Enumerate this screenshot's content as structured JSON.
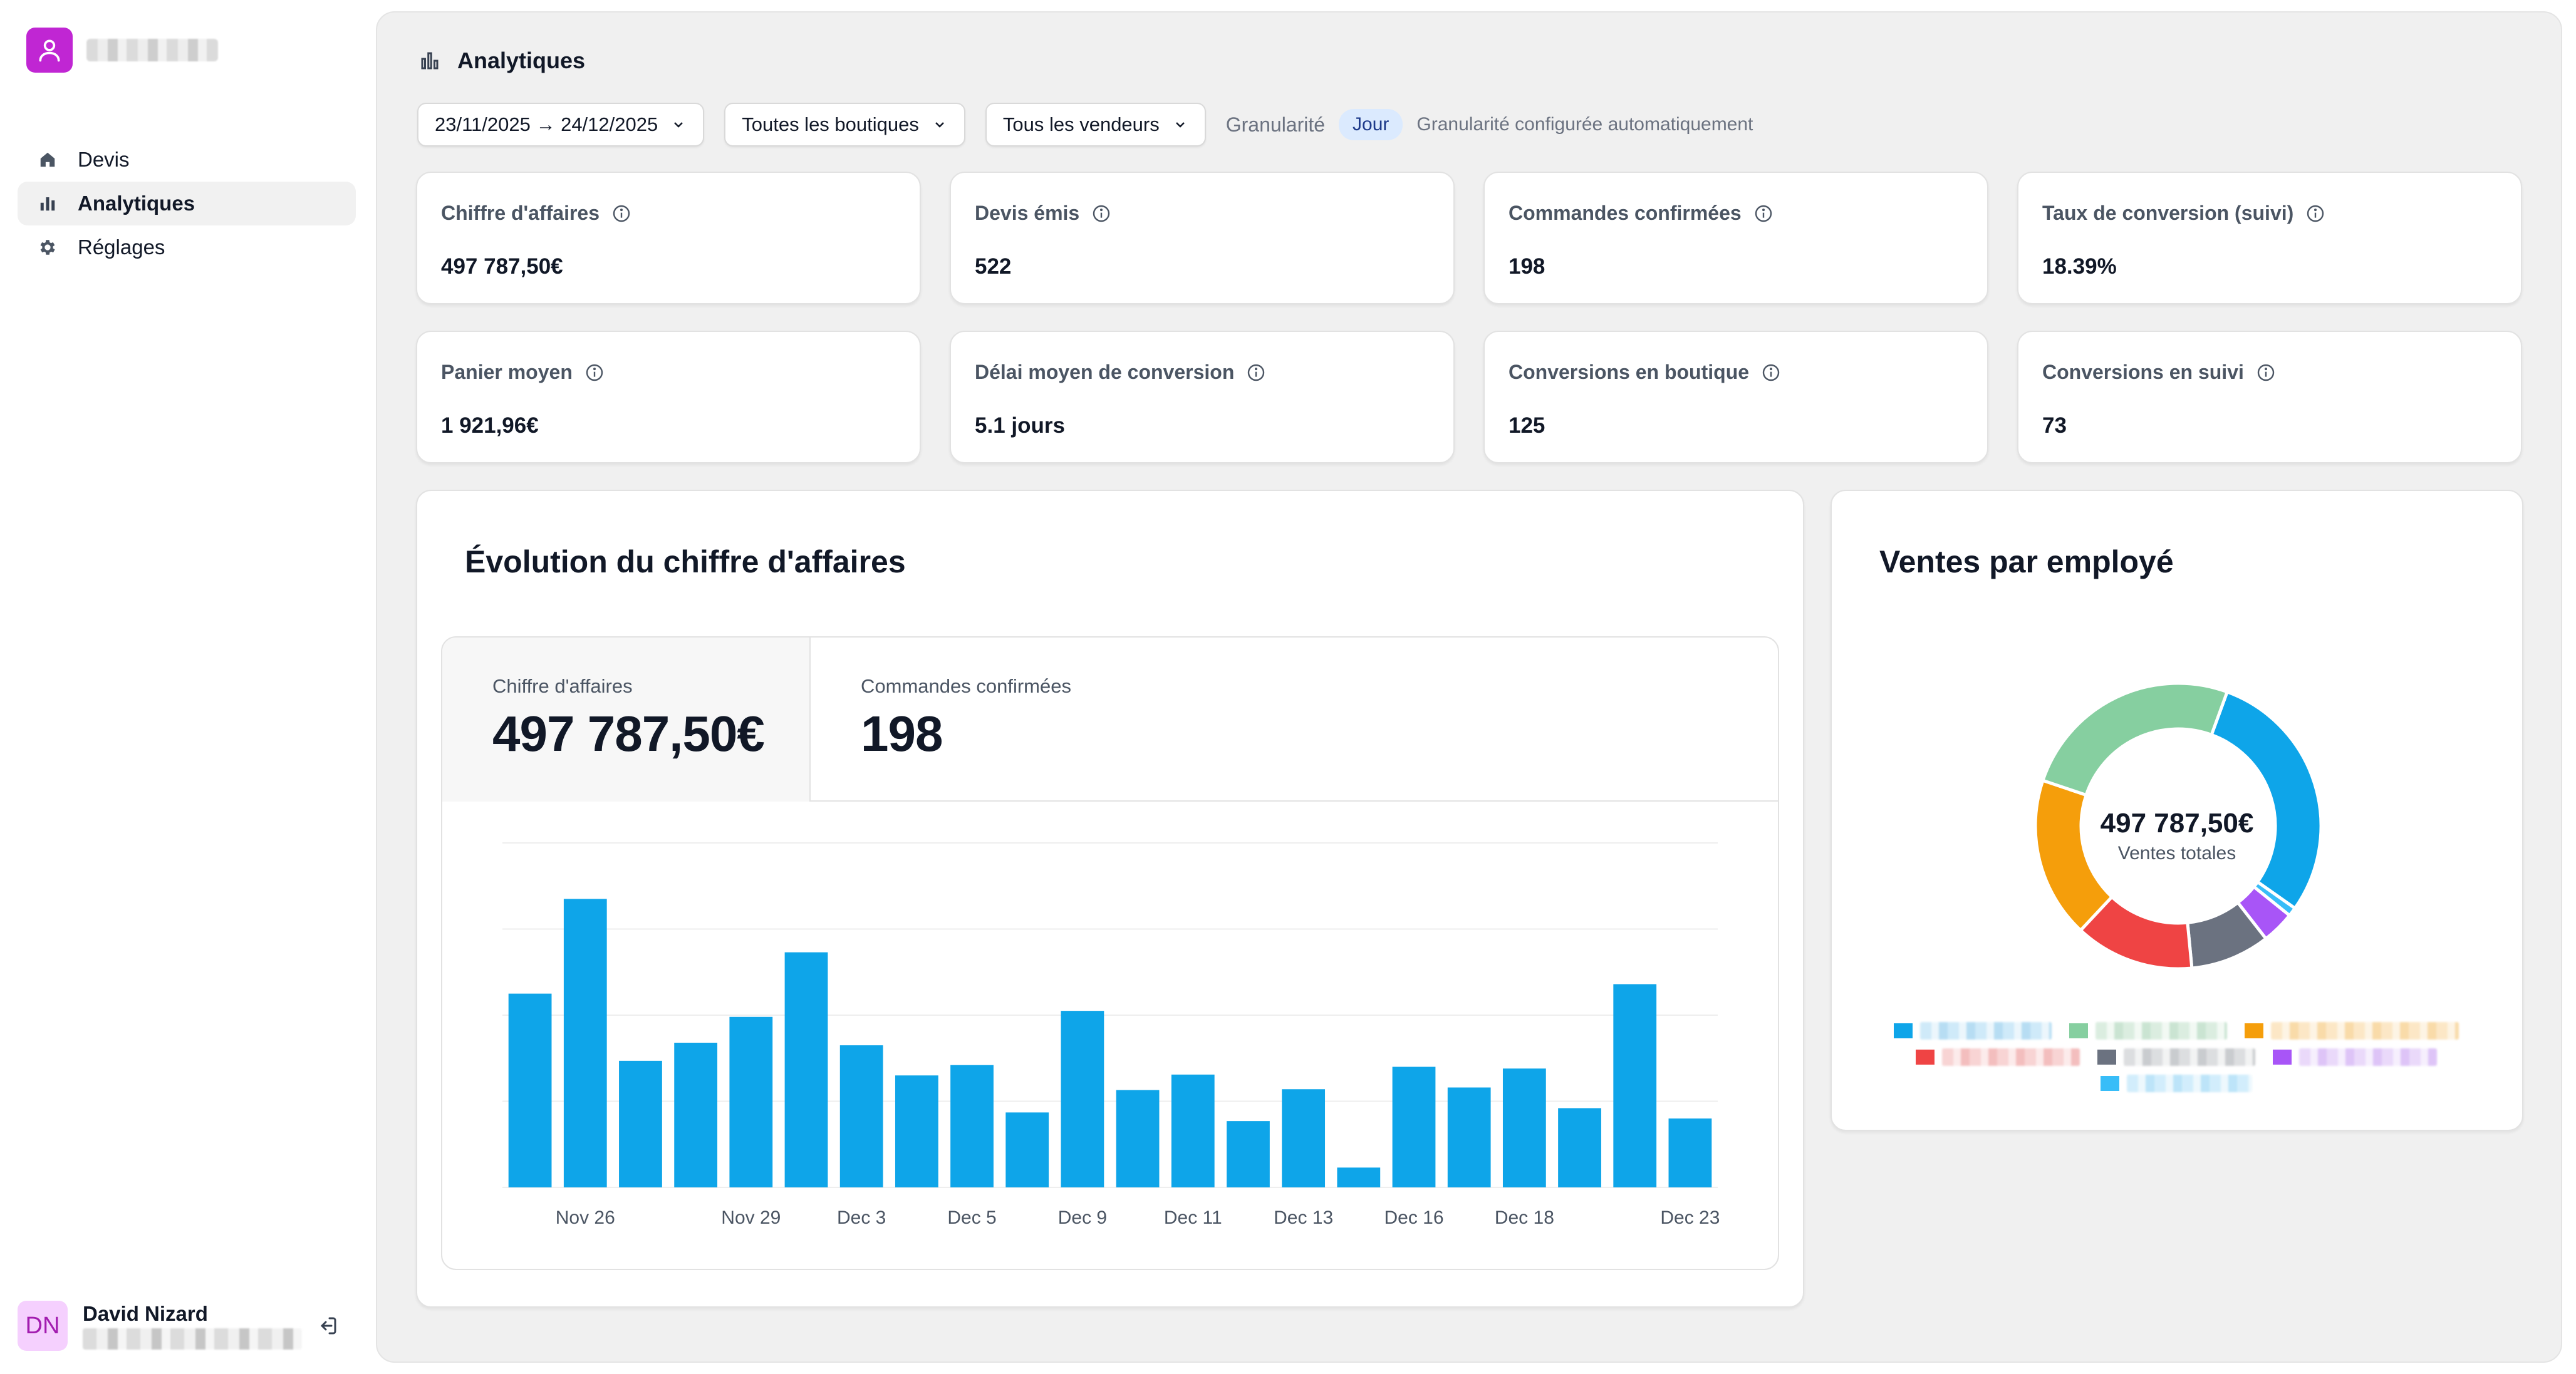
{
  "app": {
    "brand_name": ""
  },
  "sidebar": {
    "items": [
      {
        "label": "Devis",
        "icon": "home-icon",
        "active": false
      },
      {
        "label": "Analytiques",
        "icon": "bar-chart-icon",
        "active": true
      },
      {
        "label": "Réglages",
        "icon": "gear-icon",
        "active": false
      }
    ],
    "user": {
      "initials": "DN",
      "name": "David Nizard",
      "email": ""
    }
  },
  "page": {
    "title": "Analytiques",
    "filters": {
      "date_range": "23/11/2025 → 24/12/2025",
      "shops": "Toutes les boutiques",
      "sellers": "Tous les vendeurs",
      "granularity_label": "Granularité",
      "granularity_value": "Jour",
      "granularity_note": "Granularité configurée automatiquement"
    },
    "kpis": [
      {
        "label": "Chiffre d'affaires",
        "value": "497 787,50€"
      },
      {
        "label": "Devis émis",
        "value": "522"
      },
      {
        "label": "Commandes confirmées",
        "value": "198"
      },
      {
        "label": "Taux de conversion (suivi)",
        "value": "18.39%"
      },
      {
        "label": "Panier moyen",
        "value": "1 921,96€"
      },
      {
        "label": "Délai moyen de conversion",
        "value": "5.1 jours"
      },
      {
        "label": "Conversions en boutique",
        "value": "125"
      },
      {
        "label": "Conversions en suivi",
        "value": "73"
      }
    ]
  },
  "revenue_card": {
    "title": "Évolution du chiffre d'affaires",
    "tabs": [
      {
        "label": "Chiffre d'affaires",
        "value": "497 787,50€",
        "active": true
      },
      {
        "label": "Commandes confirmées",
        "value": "198",
        "active": false
      }
    ]
  },
  "sales_card": {
    "title": "Ventes par employé",
    "center_value": "497 787,50€",
    "center_label": "Ventes totales"
  },
  "chart_data": [
    {
      "type": "bar",
      "title": "Évolution du chiffre d'affaires",
      "series": [
        {
          "values": [
            22.5,
            33.5,
            14.7,
            16.8,
            19.8,
            27.3,
            16.5,
            13.0,
            14.2,
            8.7,
            20.5,
            11.3,
            13.1,
            7.7,
            11.4,
            2.3,
            14.0,
            11.6,
            13.8,
            9.2,
            23.6,
            8.0
          ]
        }
      ],
      "x_tick_labels": [
        {
          "index": 1,
          "label": "Nov 26"
        },
        {
          "index": 4,
          "label": "Nov 29"
        },
        {
          "index": 6,
          "label": "Dec 3"
        },
        {
          "index": 8,
          "label": "Dec 5"
        },
        {
          "index": 10,
          "label": "Dec 9"
        },
        {
          "index": 12,
          "label": "Dec 11"
        },
        {
          "index": 14,
          "label": "Dec 13"
        },
        {
          "index": 16,
          "label": "Dec 16"
        },
        {
          "index": 18,
          "label": "Dec 18"
        },
        {
          "index": 21,
          "label": "Dec 23"
        }
      ],
      "ylim": [
        0,
        40
      ],
      "grid": true,
      "color": "#0ea5e9"
    },
    {
      "type": "pie",
      "title": "Ventes par employé",
      "donut": true,
      "slices": [
        {
          "value": 29.2,
          "color": "#0ea5e9"
        },
        {
          "value": 1.0,
          "color": "#38bdf8"
        },
        {
          "value": 3.7,
          "color": "#a855f7"
        },
        {
          "value": 9.0,
          "color": "#6b7280"
        },
        {
          "value": 13.5,
          "color": "#ef4444"
        },
        {
          "value": 18.2,
          "color": "#f59e0b"
        },
        {
          "value": 25.4,
          "color": "#86cfa0"
        }
      ],
      "legend_placement": "bottom"
    }
  ]
}
